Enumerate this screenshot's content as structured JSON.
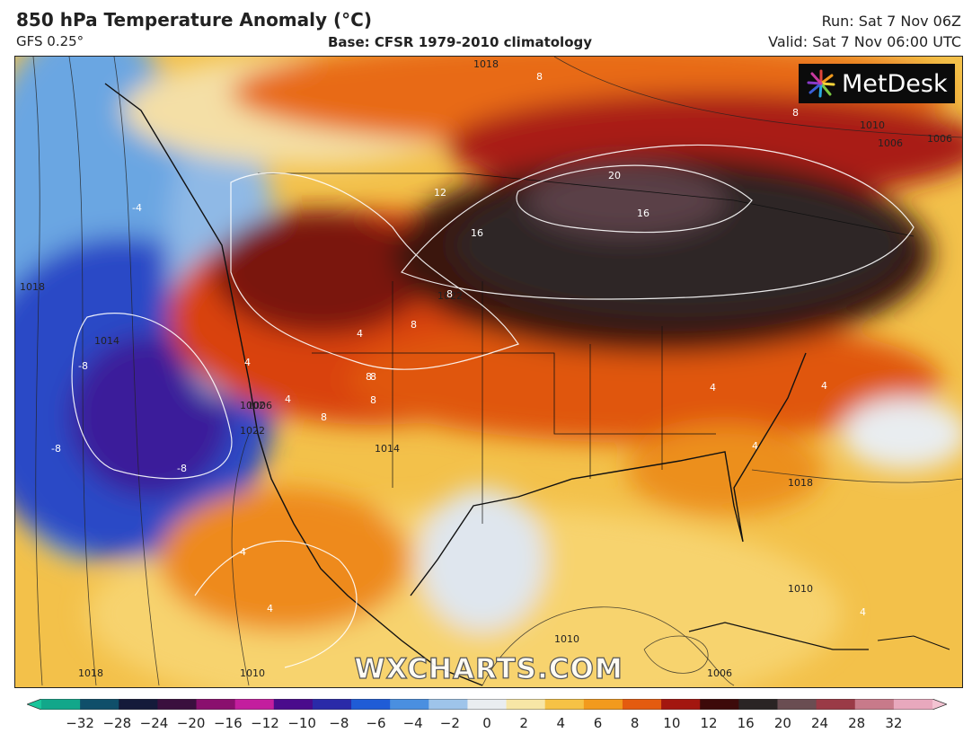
{
  "header": {
    "title": "850 hPa Temperature Anomaly (°C)",
    "model": "GFS 0.25°",
    "base": "Base: CFSR 1979-2010 climatology",
    "run": "Run: Sat 7 Nov 06Z",
    "valid": "Valid: Sat 7 Nov 06:00 UTC"
  },
  "map": {
    "region": "North America",
    "logo_text": "MetDesk",
    "watermark": "WXCHARTS.COM",
    "pressure_labels": [
      "1018",
      "1010",
      "1010",
      "1014",
      "1006",
      "1018",
      "1014",
      "1018",
      "1022",
      "1022",
      "1006",
      "1002",
      "1010",
      "1010",
      "1006",
      "1018",
      "1010",
      "1006"
    ],
    "anomaly_labels": [
      "8",
      "8",
      "20",
      "12",
      "16",
      "16",
      "-4",
      "-8",
      "-8",
      "-8",
      "8",
      "8",
      "8",
      "4",
      "8",
      "8",
      "8",
      "4",
      "4",
      "4",
      "4",
      "4",
      "4",
      "4",
      "4"
    ]
  },
  "colorbar": {
    "ticks": [
      "−32",
      "−28",
      "−24",
      "−20",
      "−16",
      "−12",
      "−10",
      "−8",
      "−6",
      "−4",
      "−2",
      "0",
      "2",
      "4",
      "6",
      "8",
      "10",
      "12",
      "16",
      "20",
      "24",
      "28",
      "32"
    ],
    "colors": [
      "#12a78a",
      "#0f4f6a",
      "#141a3a",
      "#3a0f3e",
      "#8a0f6e",
      "#c31e9e",
      "#4a0b8c",
      "#2a2aa8",
      "#1f5cd6",
      "#4a8fe0",
      "#9ec4ea",
      "#e9edf0",
      "#f7e6a6",
      "#f6c245",
      "#f29a1d",
      "#e45b0f",
      "#a3160f",
      "#3d0a0a",
      "#2a2424",
      "#6a4d52",
      "#9a3a46",
      "#c87a8a",
      "#e8a8bd"
    ],
    "left_color": "#19c49a",
    "right_color": "#f3c3d2"
  }
}
